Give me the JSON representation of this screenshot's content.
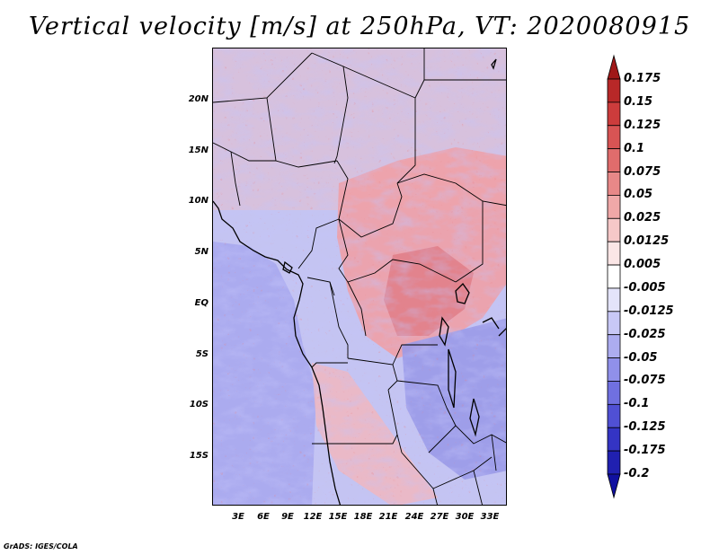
{
  "title": "Vertical velocity [m/s] at 250hPa, VT: 2020080915",
  "lat_labels": [
    "20N",
    "15N",
    "10N",
    "5N",
    "EQ",
    "5S",
    "10S",
    "15S"
  ],
  "lon_labels": [
    "3E",
    "6E",
    "9E",
    "12E",
    "15E",
    "18E",
    "21E",
    "24E",
    "27E",
    "30E",
    "33E"
  ],
  "colorbar": {
    "levels": [
      "0.175",
      "0.15",
      "0.125",
      "0.1",
      "0.075",
      "0.05",
      "0.025",
      "0.0125",
      "0.005",
      "-0.005",
      "-0.0125",
      "-0.025",
      "-0.05",
      "-0.075",
      "-0.1",
      "-0.125",
      "-0.175",
      "-0.2"
    ],
    "colors": [
      "#a01818",
      "#b82828",
      "#cc3c3c",
      "#d85454",
      "#e06c6c",
      "#e88888",
      "#f0a8a8",
      "#f6c8c8",
      "#fbe6e6",
      "#ffffff",
      "#e4e4fa",
      "#c8c8f6",
      "#acacf0",
      "#9090ea",
      "#7070e0",
      "#5050d4",
      "#3434c4",
      "#2020b0",
      "#1010a0"
    ]
  },
  "credit": "GrADS: IGES/COLA"
}
